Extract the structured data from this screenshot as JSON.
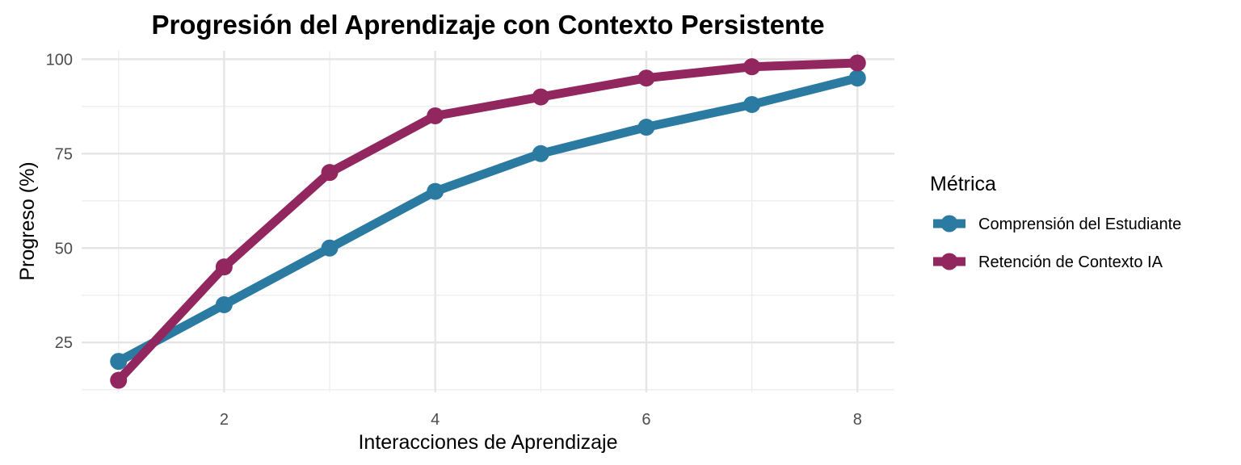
{
  "chart_data": {
    "type": "line",
    "title": "Progresión del Aprendizaje con Contexto Persistente",
    "xlabel": "Interacciones de Aprendizaje",
    "ylabel": "Progreso (%)",
    "x": [
      1,
      2,
      3,
      4,
      5,
      6,
      7,
      8
    ],
    "xlim": [
      0.65,
      8.35
    ],
    "ylim": [
      11.8,
      102.2
    ],
    "x_ticks": [
      2,
      4,
      6,
      8
    ],
    "y_ticks": [
      25,
      50,
      75,
      100
    ],
    "grid": true,
    "legend": {
      "title": "Métrica",
      "position": "right"
    },
    "series": [
      {
        "name": "Comprensión del Estudiante",
        "color": "#2A7AA1",
        "values": [
          20,
          35,
          50,
          65,
          75,
          82,
          88,
          95
        ]
      },
      {
        "name": "Retención de Contexto IA",
        "color": "#92265F",
        "values": [
          15,
          45,
          70,
          85,
          90,
          95,
          98,
          99
        ]
      }
    ]
  }
}
